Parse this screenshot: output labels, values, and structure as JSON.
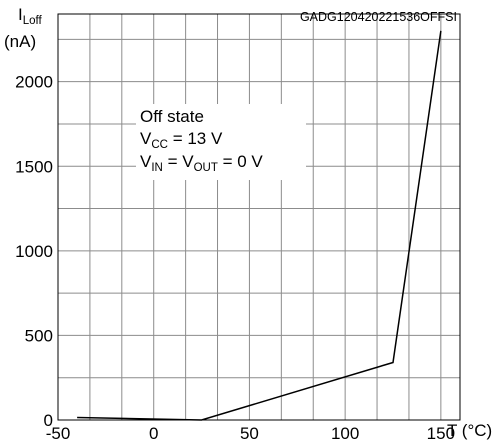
{
  "chart_data": {
    "type": "line",
    "doc_id": "GADG120420221536OFFSI",
    "ylabel": {
      "main": "I",
      "sub": "Loff",
      "unit": "(nA)"
    },
    "xlabel": "T (°C)",
    "xlim": [
      -50,
      160
    ],
    "ylim": [
      0,
      2400
    ],
    "x_ticks": [
      -50,
      0,
      50,
      100,
      150
    ],
    "y_ticks": [
      0,
      500,
      1000,
      1500,
      2000
    ],
    "x_grid_step": 16.6667,
    "y_grid_step": 250,
    "grid": true,
    "series": [
      {
        "x": [
          -40,
          25,
          125,
          150
        ],
        "y": [
          15,
          0,
          340,
          2300
        ]
      }
    ],
    "annotation": {
      "line1": "Off state",
      "line2": {
        "main": "V",
        "sub": "CC",
        "rest": " = 13 V"
      },
      "line3": {
        "main1": "V",
        "sub1": "IN",
        "mid": " = V",
        "sub2": "OUT",
        "rest": " = 0 V"
      }
    }
  }
}
